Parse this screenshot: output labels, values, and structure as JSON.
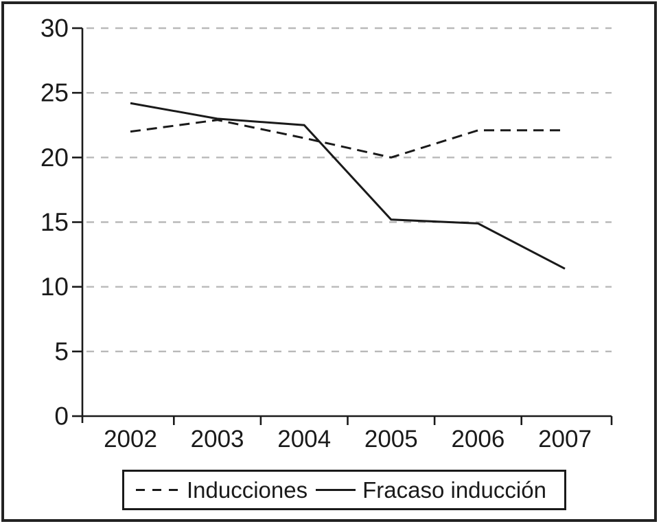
{
  "chart_data": {
    "type": "line",
    "categories": [
      "2002",
      "2003",
      "2004",
      "2005",
      "2006",
      "2007"
    ],
    "series": [
      {
        "name": "Inducciones",
        "style": "dashed",
        "values": [
          22.0,
          22.9,
          21.5,
          20.0,
          22.1,
          22.1
        ]
      },
      {
        "name": "Fracaso inducción",
        "style": "solid",
        "values": [
          24.2,
          23.0,
          22.5,
          15.2,
          14.9,
          11.4
        ]
      }
    ],
    "title": "",
    "xlabel": "",
    "ylabel": "",
    "ylim": [
      0,
      30
    ],
    "yticks": [
      0,
      5,
      10,
      15,
      20,
      25,
      30
    ],
    "grid": "horizontal-dashed",
    "legend_position": "bottom-box",
    "colors": {
      "line": "#1a1a1a",
      "grid": "#b9b9b9",
      "background": "#ffffff",
      "frame": "#232323"
    }
  },
  "legend": {
    "items": [
      {
        "label": "Inducciones",
        "line": "dashed"
      },
      {
        "label": "Fracaso inducción",
        "line": "solid"
      }
    ]
  }
}
